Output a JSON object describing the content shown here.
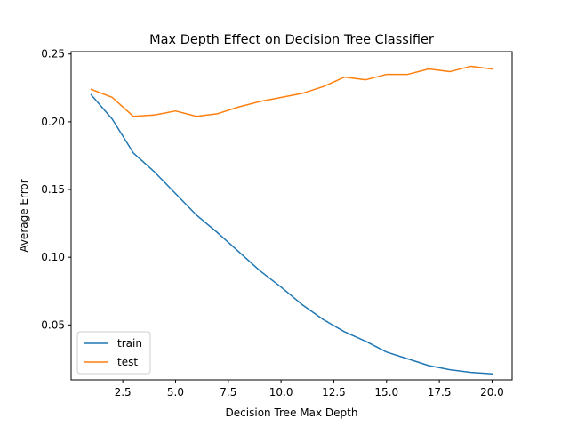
{
  "chart_data": {
    "type": "line",
    "title": "Max Depth Effect on Decision Tree Classifier",
    "xlabel": "Decision Tree Max Depth",
    "ylabel": "Average Error",
    "xlim": [
      0.05,
      20.95
    ],
    "ylim": [
      0.0095,
      0.2518
    ],
    "xticks": [
      2.5,
      5.0,
      7.5,
      10.0,
      12.5,
      15.0,
      17.5,
      20.0
    ],
    "xtick_labels": [
      "2.5",
      "5.0",
      "7.5",
      "10.0",
      "12.5",
      "15.0",
      "17.5",
      "20.0"
    ],
    "yticks": [
      0.05,
      0.1,
      0.15,
      0.2,
      0.25
    ],
    "ytick_labels": [
      "0.05",
      "0.10",
      "0.15",
      "0.20",
      "0.25"
    ],
    "grid": false,
    "legend": "lower-left",
    "x": [
      1,
      2,
      3,
      4,
      5,
      6,
      7,
      8,
      9,
      10,
      11,
      12,
      13,
      14,
      15,
      16,
      17,
      18,
      19,
      20
    ],
    "series": [
      {
        "name": "train",
        "color": "#1f77b4",
        "values": [
          0.22,
          0.202,
          0.177,
          0.163,
          0.147,
          0.131,
          0.118,
          0.104,
          0.09,
          0.078,
          0.065,
          0.054,
          0.045,
          0.038,
          0.03,
          0.025,
          0.02,
          0.017,
          0.015,
          0.014
        ]
      },
      {
        "name": "test",
        "color": "#ff7f0e",
        "values": [
          0.224,
          0.218,
          0.204,
          0.205,
          0.208,
          0.204,
          0.206,
          0.211,
          0.215,
          0.218,
          0.221,
          0.226,
          0.233,
          0.231,
          0.235,
          0.235,
          0.239,
          0.237,
          0.241,
          0.239
        ]
      }
    ]
  }
}
